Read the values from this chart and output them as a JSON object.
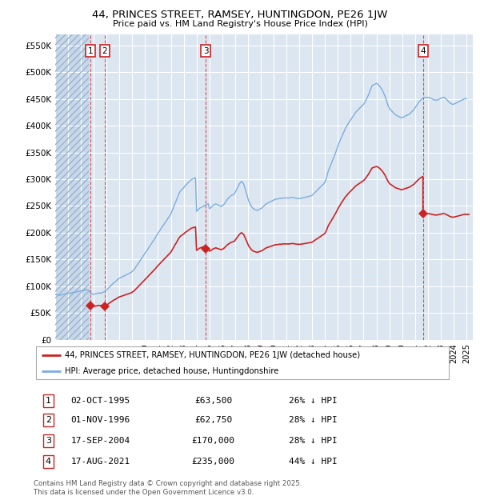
{
  "title_line1": "44, PRINCES STREET, RAMSEY, HUNTINGDON, PE26 1JW",
  "title_line2": "Price paid vs. HM Land Registry's House Price Index (HPI)",
  "ytick_values": [
    0,
    50000,
    100000,
    150000,
    200000,
    250000,
    300000,
    350000,
    400000,
    450000,
    500000,
    550000
  ],
  "xlim_start": 1993.0,
  "xlim_end": 2025.5,
  "ylim_min": 0,
  "ylim_max": 570000,
  "bg_color": "#dce6f1",
  "hatch_color": "#c8d8ea",
  "grid_color": "#ffffff",
  "hpi_color": "#7aade0",
  "price_color": "#cc2222",
  "sale_points": [
    {
      "date_decimal": 1995.75,
      "price": 63500,
      "label": "1"
    },
    {
      "date_decimal": 1996.84,
      "price": 62750,
      "label": "2"
    },
    {
      "date_decimal": 2004.71,
      "price": 170000,
      "label": "3"
    },
    {
      "date_decimal": 2021.62,
      "price": 235000,
      "label": "4"
    }
  ],
  "legend_line1": "44, PRINCES STREET, RAMSEY, HUNTINGDON, PE26 1JW (detached house)",
  "legend_line2": "HPI: Average price, detached house, Huntingdonshire",
  "table_entries": [
    {
      "num": "1",
      "date": "02-OCT-1995",
      "price": "£63,500",
      "pct": "26% ↓ HPI"
    },
    {
      "num": "2",
      "date": "01-NOV-1996",
      "price": "£62,750",
      "pct": "28% ↓ HPI"
    },
    {
      "num": "3",
      "date": "17-SEP-2004",
      "price": "£170,000",
      "pct": "28% ↓ HPI"
    },
    {
      "num": "4",
      "date": "17-AUG-2021",
      "price": "£235,000",
      "pct": "44% ↓ HPI"
    }
  ],
  "footer": "Contains HM Land Registry data © Crown copyright and database right 2025.\nThis data is licensed under the Open Government Licence v3.0.",
  "hpi_data_x": [
    1993.0,
    1993.08,
    1993.17,
    1993.25,
    1993.33,
    1993.42,
    1993.5,
    1993.58,
    1993.67,
    1993.75,
    1993.83,
    1993.92,
    1994.0,
    1994.08,
    1994.17,
    1994.25,
    1994.33,
    1994.42,
    1994.5,
    1994.58,
    1994.67,
    1994.75,
    1994.83,
    1994.92,
    1995.0,
    1995.08,
    1995.17,
    1995.25,
    1995.33,
    1995.42,
    1995.5,
    1995.58,
    1995.67,
    1995.75,
    1995.83,
    1995.92,
    1996.0,
    1996.08,
    1996.17,
    1996.25,
    1996.33,
    1996.42,
    1996.5,
    1996.58,
    1996.67,
    1996.75,
    1996.83,
    1996.92,
    1997.0,
    1997.08,
    1997.17,
    1997.25,
    1997.33,
    1997.42,
    1997.5,
    1997.58,
    1997.67,
    1997.75,
    1997.83,
    1997.92,
    1998.0,
    1998.08,
    1998.17,
    1998.25,
    1998.33,
    1998.42,
    1998.5,
    1998.58,
    1998.67,
    1998.75,
    1998.83,
    1998.92,
    1999.0,
    1999.08,
    1999.17,
    1999.25,
    1999.33,
    1999.42,
    1999.5,
    1999.58,
    1999.67,
    1999.75,
    1999.83,
    1999.92,
    2000.0,
    2000.08,
    2000.17,
    2000.25,
    2000.33,
    2000.42,
    2000.5,
    2000.58,
    2000.67,
    2000.75,
    2000.83,
    2000.92,
    2001.0,
    2001.08,
    2001.17,
    2001.25,
    2001.33,
    2001.42,
    2001.5,
    2001.58,
    2001.67,
    2001.75,
    2001.83,
    2001.92,
    2002.0,
    2002.08,
    2002.17,
    2002.25,
    2002.33,
    2002.42,
    2002.5,
    2002.58,
    2002.67,
    2002.75,
    2002.83,
    2002.92,
    2003.0,
    2003.08,
    2003.17,
    2003.25,
    2003.33,
    2003.42,
    2003.5,
    2003.58,
    2003.67,
    2003.75,
    2003.83,
    2003.92,
    2004.0,
    2004.08,
    2004.17,
    2004.25,
    2004.33,
    2004.42,
    2004.5,
    2004.58,
    2004.67,
    2004.75,
    2004.83,
    2004.92,
    2005.0,
    2005.08,
    2005.17,
    2005.25,
    2005.33,
    2005.42,
    2005.5,
    2005.58,
    2005.67,
    2005.75,
    2005.83,
    2005.92,
    2006.0,
    2006.08,
    2006.17,
    2006.25,
    2006.33,
    2006.42,
    2006.5,
    2006.58,
    2006.67,
    2006.75,
    2006.83,
    2006.92,
    2007.0,
    2007.08,
    2007.17,
    2007.25,
    2007.33,
    2007.42,
    2007.5,
    2007.58,
    2007.67,
    2007.75,
    2007.83,
    2007.92,
    2008.0,
    2008.08,
    2008.17,
    2008.25,
    2008.33,
    2008.42,
    2008.5,
    2008.58,
    2008.67,
    2008.75,
    2008.83,
    2008.92,
    2009.0,
    2009.08,
    2009.17,
    2009.25,
    2009.33,
    2009.42,
    2009.5,
    2009.58,
    2009.67,
    2009.75,
    2009.83,
    2009.92,
    2010.0,
    2010.08,
    2010.17,
    2010.25,
    2010.33,
    2010.42,
    2010.5,
    2010.58,
    2010.67,
    2010.75,
    2010.83,
    2010.92,
    2011.0,
    2011.08,
    2011.17,
    2011.25,
    2011.33,
    2011.42,
    2011.5,
    2011.58,
    2011.67,
    2011.75,
    2011.83,
    2011.92,
    2012.0,
    2012.08,
    2012.17,
    2012.25,
    2012.33,
    2012.42,
    2012.5,
    2012.58,
    2012.67,
    2012.75,
    2012.83,
    2012.92,
    2013.0,
    2013.08,
    2013.17,
    2013.25,
    2013.33,
    2013.42,
    2013.5,
    2013.58,
    2013.67,
    2013.75,
    2013.83,
    2013.92,
    2014.0,
    2014.08,
    2014.17,
    2014.25,
    2014.33,
    2014.42,
    2014.5,
    2014.58,
    2014.67,
    2014.75,
    2014.83,
    2014.92,
    2015.0,
    2015.08,
    2015.17,
    2015.25,
    2015.33,
    2015.42,
    2015.5,
    2015.58,
    2015.67,
    2015.75,
    2015.83,
    2015.92,
    2016.0,
    2016.08,
    2016.17,
    2016.25,
    2016.33,
    2016.42,
    2016.5,
    2016.58,
    2016.67,
    2016.75,
    2016.83,
    2016.92,
    2017.0,
    2017.08,
    2017.17,
    2017.25,
    2017.33,
    2017.42,
    2017.5,
    2017.58,
    2017.67,
    2017.75,
    2017.83,
    2017.92,
    2018.0,
    2018.08,
    2018.17,
    2018.25,
    2018.33,
    2018.42,
    2018.5,
    2018.58,
    2018.67,
    2018.75,
    2018.83,
    2018.92,
    2019.0,
    2019.08,
    2019.17,
    2019.25,
    2019.33,
    2019.42,
    2019.5,
    2019.58,
    2019.67,
    2019.75,
    2019.83,
    2019.92,
    2020.0,
    2020.08,
    2020.17,
    2020.25,
    2020.33,
    2020.42,
    2020.5,
    2020.58,
    2020.67,
    2020.75,
    2020.83,
    2020.92,
    2021.0,
    2021.08,
    2021.17,
    2021.25,
    2021.33,
    2021.42,
    2021.5,
    2021.58,
    2021.67,
    2021.75,
    2021.83,
    2021.92,
    2022.0,
    2022.08,
    2022.17,
    2022.25,
    2022.33,
    2022.42,
    2022.5,
    2022.58,
    2022.67,
    2022.75,
    2022.83,
    2022.92,
    2023.0,
    2023.08,
    2023.17,
    2023.25,
    2023.33,
    2023.42,
    2023.5,
    2023.58,
    2023.67,
    2023.75,
    2023.83,
    2023.92,
    2024.0,
    2024.08,
    2024.17,
    2024.25,
    2024.33,
    2024.42,
    2024.5,
    2024.58,
    2024.67,
    2024.75,
    2024.83,
    2024.92,
    2025.0
  ],
  "hpi_data_y": [
    85000,
    84500,
    84000,
    83500,
    83000,
    83500,
    84000,
    84500,
    85000,
    85500,
    86000,
    86000,
    86500,
    87000,
    87000,
    87500,
    88000,
    88500,
    89000,
    89000,
    89500,
    90000,
    90500,
    91000,
    91500,
    92000,
    92000,
    92500,
    93000,
    93500,
    93000,
    92500,
    92000,
    86500,
    86000,
    85500,
    85000,
    85500,
    86000,
    86500,
    87000,
    87500,
    87000,
    87500,
    88000,
    89000,
    90000,
    91000,
    93000,
    95000,
    97000,
    99000,
    101000,
    103000,
    105000,
    107000,
    108000,
    110000,
    112000,
    114000,
    115000,
    116000,
    117000,
    118000,
    119000,
    120000,
    121000,
    122000,
    123000,
    124000,
    125000,
    126000,
    128000,
    130000,
    132000,
    135000,
    138000,
    141000,
    144000,
    147000,
    150000,
    153000,
    156000,
    159000,
    162000,
    165000,
    168000,
    171000,
    174000,
    177000,
    180000,
    183000,
    186000,
    189000,
    192000,
    196000,
    199000,
    202000,
    205000,
    208000,
    211000,
    214000,
    217000,
    220000,
    223000,
    226000,
    229000,
    232000,
    235000,
    240000,
    245000,
    250000,
    255000,
    260000,
    265000,
    270000,
    275000,
    278000,
    280000,
    282000,
    284000,
    287000,
    289000,
    291000,
    293000,
    295000,
    297000,
    299000,
    300000,
    301000,
    302000,
    302500,
    240000,
    242000,
    244000,
    246000,
    247000,
    248000,
    249000,
    250000,
    251000,
    252000,
    253000,
    254000,
    245000,
    246000,
    248000,
    250000,
    252000,
    253000,
    254000,
    253000,
    252000,
    251000,
    250000,
    249000,
    250000,
    252000,
    254000,
    257000,
    260000,
    263000,
    265000,
    267000,
    269000,
    270000,
    271000,
    272000,
    275000,
    279000,
    283000,
    287000,
    291000,
    294000,
    296000,
    294000,
    291000,
    285000,
    278000,
    271000,
    264000,
    258000,
    254000,
    250000,
    247000,
    245000,
    244000,
    243000,
    242000,
    242000,
    243000,
    244000,
    245000,
    246000,
    248000,
    250000,
    252000,
    254000,
    255000,
    256000,
    257000,
    258000,
    259000,
    260000,
    261000,
    262000,
    263000,
    263000,
    263000,
    264000,
    264000,
    264000,
    265000,
    265000,
    265000,
    265000,
    265000,
    265000,
    265000,
    265000,
    265500,
    266000,
    266000,
    265500,
    265000,
    264500,
    264000,
    264000,
    264000,
    264000,
    264500,
    265000,
    265500,
    266000,
    266500,
    267000,
    267500,
    268000,
    268500,
    269000,
    270000,
    272000,
    274000,
    276000,
    278000,
    280000,
    282000,
    284000,
    286000,
    288000,
    290000,
    292000,
    295000,
    300000,
    308000,
    315000,
    320000,
    325000,
    330000,
    335000,
    340000,
    345000,
    350000,
    356000,
    362000,
    367000,
    372000,
    377000,
    381000,
    386000,
    390000,
    395000,
    398000,
    402000,
    405000,
    408000,
    411000,
    414000,
    417000,
    420000,
    423000,
    426000,
    428000,
    430000,
    432000,
    434000,
    436000,
    438000,
    440000,
    443000,
    447000,
    451000,
    455000,
    460000,
    465000,
    470000,
    475000,
    476000,
    477000,
    478000,
    479000,
    478000,
    476000,
    474000,
    471000,
    468000,
    464000,
    460000,
    455000,
    449000,
    443000,
    437000,
    433000,
    430000,
    428000,
    426000,
    424000,
    422000,
    420000,
    419000,
    418000,
    417000,
    416000,
    415000,
    415000,
    416000,
    417000,
    418000,
    419000,
    420000,
    421000,
    422000,
    424000,
    426000,
    428000,
    430000,
    433000,
    436000,
    439000,
    442000,
    445000,
    447000,
    449000,
    451000,
    452000,
    453000,
    453000,
    453000,
    453000,
    453000,
    452000,
    451000,
    450000,
    449000,
    448000,
    448000,
    448000,
    448000,
    449000,
    450000,
    451000,
    452000,
    453000,
    453000,
    452000,
    450000,
    448000,
    446000,
    444000,
    442000,
    441000,
    440000,
    440000,
    441000,
    442000,
    443000,
    444000,
    445000,
    446000,
    447000,
    448000,
    449000,
    450000,
    451000,
    450000
  ]
}
